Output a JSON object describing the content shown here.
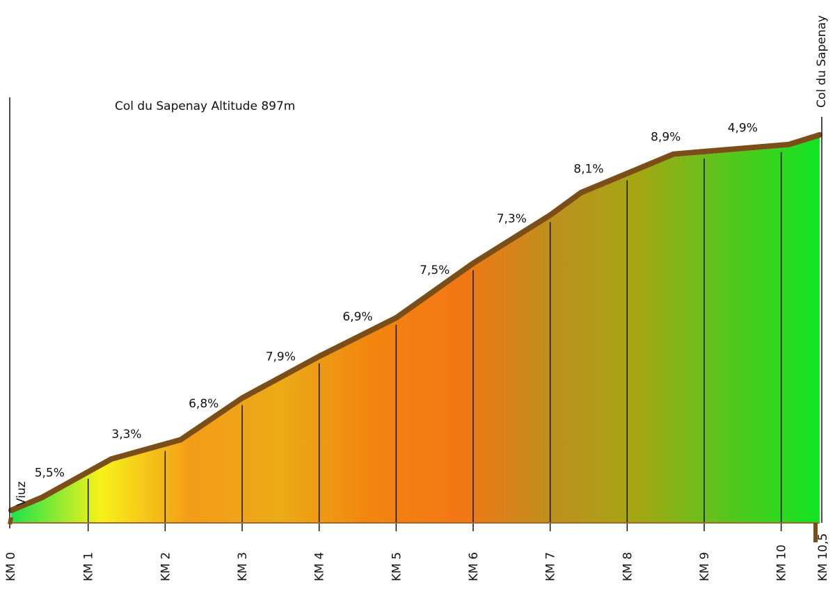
{
  "chart_data": {
    "type": "area",
    "title": "Col du Sapenay Altitude 897m",
    "start_label": "Viuz",
    "end_label": "Col du Sapenay",
    "km_labels": [
      "KM 0",
      "KM 1",
      "KM 2",
      "KM 3",
      "KM 4",
      "KM 5",
      "KM 6",
      "KM 7",
      "KM 8",
      "KM 9",
      "KM 10",
      "KM 10,5"
    ],
    "km_positions": [
      0,
      1,
      2,
      3,
      4,
      5,
      6,
      7,
      8,
      9,
      10,
      10.5
    ],
    "profile_km": [
      0,
      0.4,
      1.3,
      2.2,
      3,
      4,
      5,
      6,
      7,
      7.4,
      8.6,
      10.1,
      10.5
    ],
    "profile_rel_elevation": [
      0,
      2,
      8,
      11,
      17.5,
      24,
      30,
      38.5,
      46,
      49.5,
      55.5,
      57,
      58.5
    ],
    "grades": [
      {
        "label": "5,5%",
        "km": 0.5
      },
      {
        "label": "3,3%",
        "km": 1.5
      },
      {
        "label": "6,8%",
        "km": 2.5
      },
      {
        "label": "7,9%",
        "km": 3.5
      },
      {
        "label": "6,9%",
        "km": 4.5
      },
      {
        "label": "7,5%",
        "km": 5.5
      },
      {
        "label": "7,3%",
        "km": 6.5
      },
      {
        "label": "8,1%",
        "km": 7.5
      },
      {
        "label": "8,9%",
        "km": 8.5
      },
      {
        "label": "4,9%",
        "km": 9.5
      }
    ],
    "gradient_colors": [
      "#1de34a",
      "#f7f21a",
      "#f39c18",
      "#ebab17",
      "#f2850f",
      "#f37715",
      "#bf8f1d",
      "#a3a714",
      "#55c71d",
      "#12e523"
    ],
    "line_color": "#7a4e16"
  }
}
